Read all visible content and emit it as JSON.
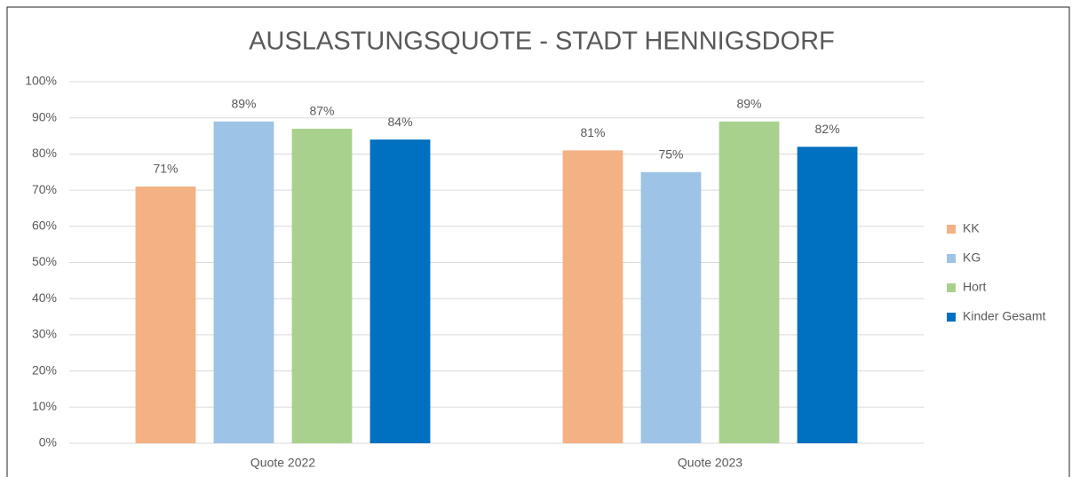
{
  "chart_data": {
    "type": "bar",
    "title": "AUSLASTUNGSQUOTE - STADT HENNIGSDORF",
    "categories": [
      "Quote 2022",
      "Quote 2023"
    ],
    "series": [
      {
        "name": "KK",
        "color": "#f4b183",
        "values": [
          71,
          81
        ],
        "value_labels": [
          "71%",
          "81%"
        ]
      },
      {
        "name": "KG",
        "color": "#9dc3e6",
        "values": [
          89,
          75
        ],
        "value_labels": [
          "89%",
          "75%"
        ]
      },
      {
        "name": "Hort",
        "color": "#a9d18e",
        "values": [
          87,
          89
        ],
        "value_labels": [
          "87%",
          "89%"
        ]
      },
      {
        "name": "Kinder Gesamt",
        "color": "#0070c0",
        "values": [
          84,
          82
        ],
        "value_labels": [
          "84%",
          "82%"
        ]
      }
    ],
    "ylim": [
      0,
      100
    ],
    "yticks": [
      {
        "value": 0,
        "label": "0%"
      },
      {
        "value": 10,
        "label": "10%"
      },
      {
        "value": 20,
        "label": "20%"
      },
      {
        "value": 30,
        "label": "30%"
      },
      {
        "value": 40,
        "label": "40%"
      },
      {
        "value": 50,
        "label": "50%"
      },
      {
        "value": 60,
        "label": "60%"
      },
      {
        "value": 70,
        "label": "70%"
      },
      {
        "value": 80,
        "label": "80%"
      },
      {
        "value": 90,
        "label": "90%"
      },
      {
        "value": 100,
        "label": "100%"
      }
    ],
    "grid": true,
    "legend": "right"
  }
}
